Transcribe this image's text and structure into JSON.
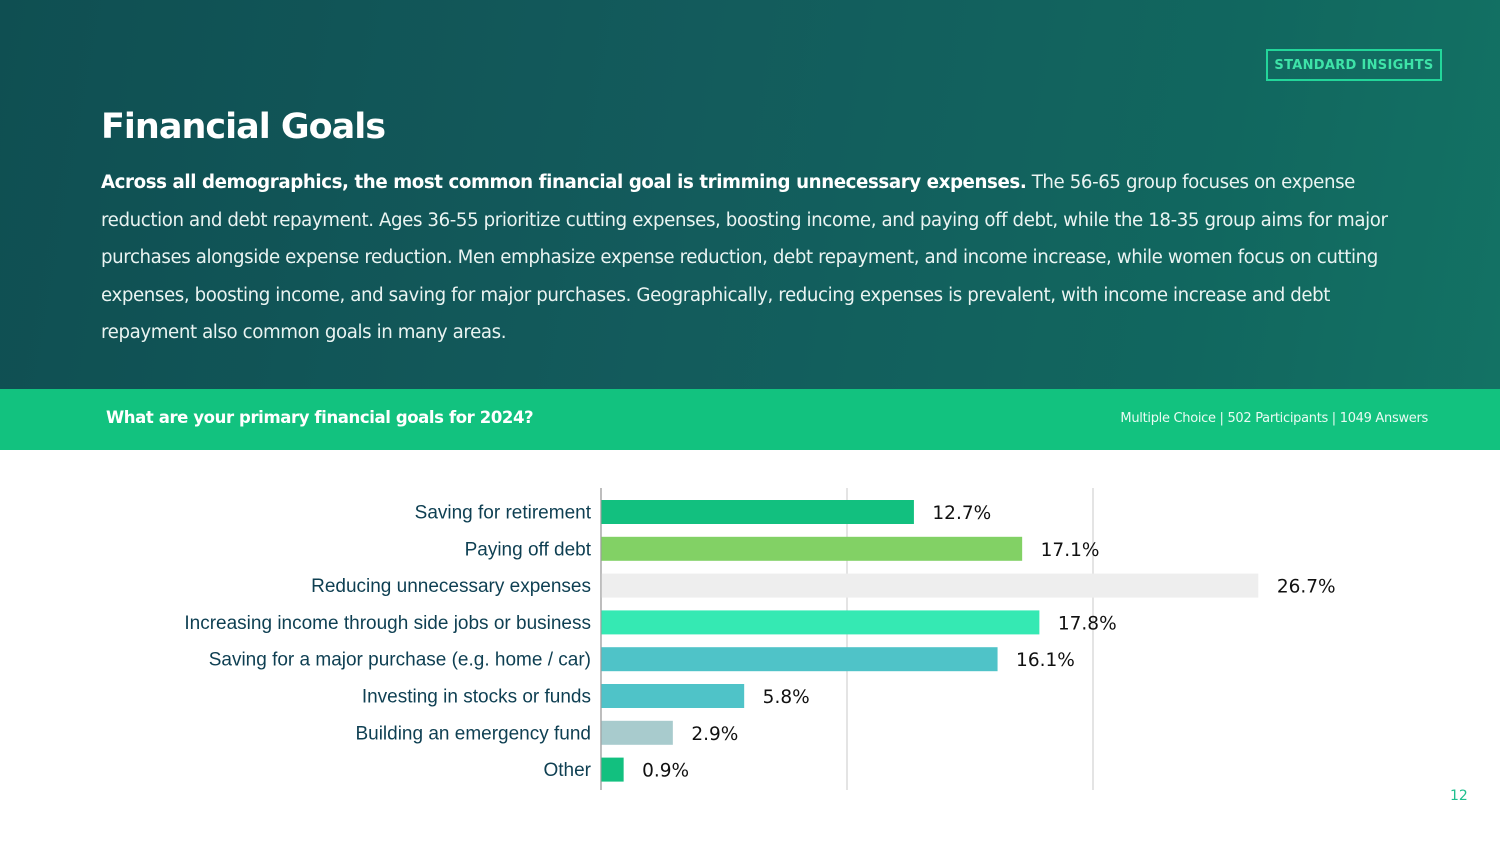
{
  "header": {
    "badge": "STANDARD INSIGHTS",
    "title": "Financial Goals",
    "description_bold": "Across all demographics, the most common financial goal is trimming unnecessary expenses.",
    "description_rest": " The 56-65 group focuses on expense reduction and debt repayment. Ages 36-55 prioritize cutting expenses, boosting income, and paying off debt, while the 18-35 group aims for major purchases alongside expense reduction. Men emphasize expense reduction, debt repayment, and income increase, while women focus on cutting expenses, boosting income, and saving for major purchases. Geographically, reducing expenses is prevalent, with income increase and debt repayment also common goals in many areas."
  },
  "question_bar": {
    "question": "What are your primary financial goals for 2024?",
    "meta": "Multiple Choice | 502 Participants | 1049 Answers"
  },
  "footer": {
    "page_number": "12"
  },
  "chart_data": {
    "type": "bar",
    "orientation": "horizontal",
    "categories": [
      "Saving for retirement",
      "Paying off debt",
      "Reducing unnecessary expenses",
      "Increasing income through side jobs or business",
      "Saving for a major purchase (e.g. home / car)",
      "Investing in stocks or funds",
      "Building an emergency fund",
      "Other"
    ],
    "values": [
      12.7,
      17.1,
      26.7,
      17.8,
      16.1,
      5.8,
      2.9,
      0.9
    ],
    "value_labels": [
      "12.7%",
      "17.1%",
      "26.7%",
      "17.8%",
      "16.1%",
      "5.8%",
      "2.9%",
      "0.9%"
    ],
    "bar_colors": [
      "#12c07f",
      "#82d165",
      "#eeeeee",
      "#35e9b3",
      "#4fc3c8",
      "#4fc3c8",
      "#a8cbcd",
      "#12c07f"
    ],
    "xlim": [
      0,
      30
    ],
    "gridlines_at": [
      0,
      10,
      20
    ],
    "x_tick_labels_shown": false,
    "label_color": "#0e3f52",
    "grid_color": "#d3d3d3"
  }
}
